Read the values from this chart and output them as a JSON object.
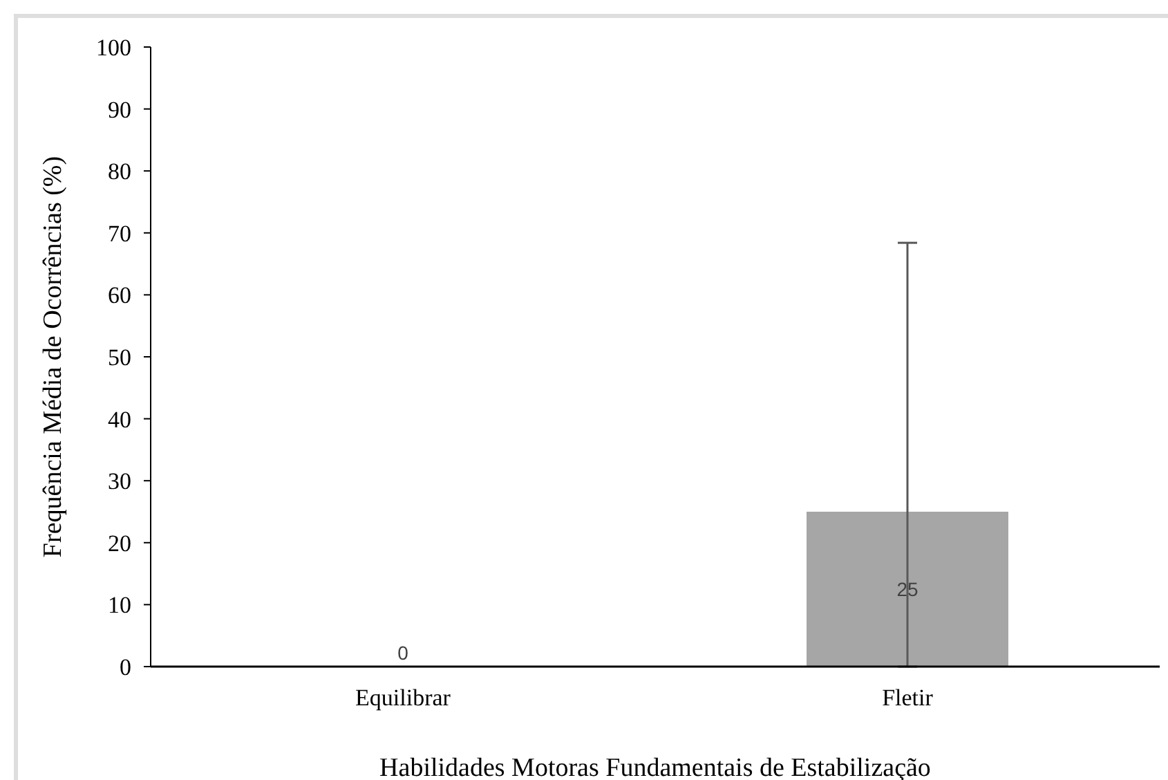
{
  "chart_data": {
    "type": "bar",
    "xlabel": "Habilidades Motoras Fundamentais de Estabilização",
    "ylabel": "Frequência Média de Ocorrências (%)",
    "categories": [
      "Equilibrar",
      "Fletir"
    ],
    "values": [
      0,
      25
    ],
    "errors": [
      null,
      [
        0,
        68.4
      ]
    ],
    "color": "#a6a6a6",
    "ylim": [
      0,
      100
    ],
    "yticks": [
      0,
      10,
      20,
      30,
      40,
      50,
      60,
      70,
      80,
      90,
      100
    ],
    "data_labels": true
  }
}
